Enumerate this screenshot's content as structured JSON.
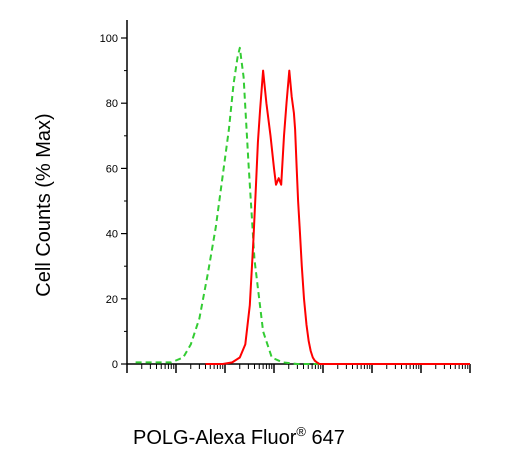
{
  "chart_data": {
    "type": "line",
    "title": "",
    "xlabel": "POLG-Alexa Fluor",
    "xlabel_sup": "®",
    "xlabel_suffix": " 647",
    "ylabel": "Cell Counts (% Max)",
    "xscale": "log",
    "xlim": [
      1,
      10000000
    ],
    "ylim": [
      0,
      100
    ],
    "yticks": [
      "0",
      "20",
      "40",
      "60",
      "80",
      "100"
    ],
    "grid": false,
    "series": [
      {
        "style": "dashed",
        "color": "#33cc33",
        "x": [
          1.5,
          8,
          14,
          20,
          30,
          45,
          65,
          90,
          120,
          150,
          180,
          200,
          240,
          300,
          400,
          600,
          900,
          1500,
          3000,
          10000000
        ],
        "y": [
          0.5,
          0.5,
          2,
          6,
          14,
          28,
          42,
          58,
          72,
          86,
          94,
          97,
          88,
          62,
          32,
          10,
          2,
          0.5,
          0,
          0
        ]
      },
      {
        "style": "solid",
        "color": "#ff0000",
        "x": [
          40,
          90,
          140,
          200,
          260,
          320,
          380,
          430,
          470,
          520,
          600,
          700,
          850,
          1000,
          1100,
          1250,
          1400,
          1600,
          1800,
          2050,
          2300,
          2550,
          2700,
          2900,
          3100,
          3400,
          3700,
          4100,
          4600,
          5100,
          5600,
          6200,
          6800,
          7500,
          8500,
          10000,
          13000,
          20000,
          10000000
        ],
        "y": [
          0,
          0,
          0.5,
          2,
          6,
          18,
          38,
          55,
          68,
          78,
          90,
          80,
          70,
          60,
          55,
          57,
          55,
          70,
          80,
          90,
          82,
          77,
          72,
          60,
          50,
          40,
          30,
          20,
          12,
          7,
          4,
          2,
          1,
          0.5,
          0,
          0,
          0,
          0,
          0
        ]
      }
    ]
  }
}
